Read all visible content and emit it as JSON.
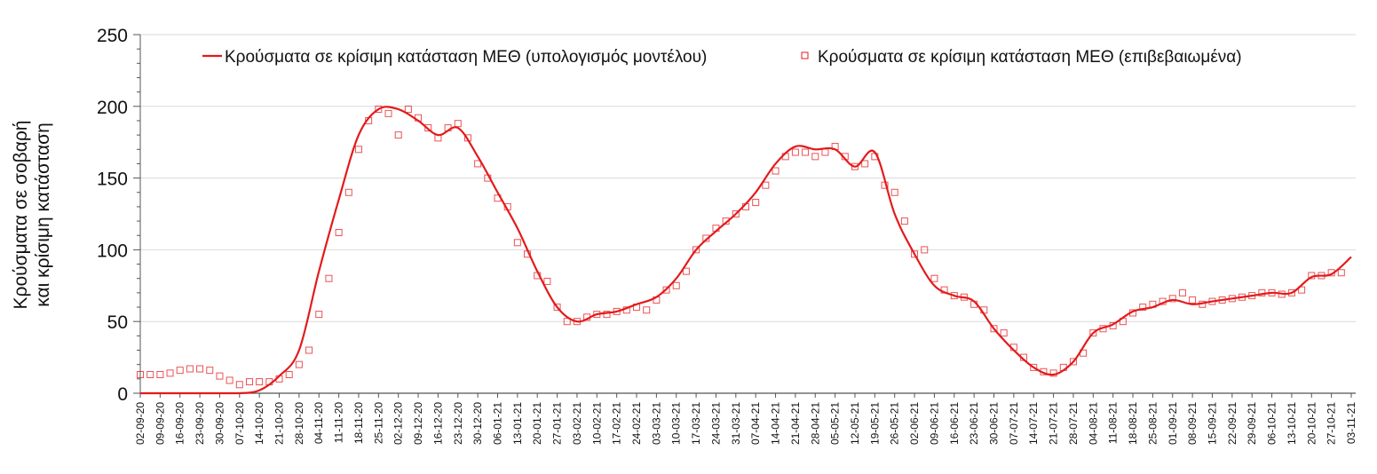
{
  "chart_data": {
    "type": "line",
    "title": "",
    "ylabel_lines": [
      "Κρούσματα σε σοβαρή",
      "και κρίσιμη κατάσταση"
    ],
    "xlabel": "",
    "ylim": [
      0,
      250
    ],
    "yticks": [
      0,
      50,
      100,
      150,
      200,
      250
    ],
    "ytick_labels": [
      "0",
      "50",
      "100",
      "150",
      "200",
      "250"
    ],
    "y_minor_step": 10,
    "grid": true,
    "legend_placement": "top",
    "colors": {
      "model": "#e31a1c",
      "confirmed": "#e31a1c",
      "grid": "#d9d9d9",
      "axis": "#555555"
    },
    "x_tick_labels": [
      "02-09-20",
      "09-09-20",
      "16-09-20",
      "23-09-20",
      "30-09-20",
      "07-10-20",
      "14-10-20",
      "21-10-20",
      "28-10-20",
      "04-11-20",
      "11-11-20",
      "18-11-20",
      "25-11-20",
      "02-12-20",
      "09-12-20",
      "16-12-20",
      "23-12-20",
      "30-12-20",
      "06-01-21",
      "13-01-21",
      "20-01-21",
      "27-01-21",
      "03-02-21",
      "10-02-21",
      "17-02-21",
      "24-02-21",
      "03-03-21",
      "10-03-21",
      "17-03-21",
      "24-03-21",
      "31-03-21",
      "07-04-21",
      "14-04-21",
      "21-04-21",
      "28-04-21",
      "05-05-21",
      "12-05-21",
      "19-05-21",
      "26-05-21",
      "02-06-21",
      "09-06-21",
      "16-06-21",
      "23-06-21",
      "30-06-21",
      "07-07-21",
      "14-07-21",
      "21-07-21",
      "28-07-21",
      "04-08-21",
      "11-08-21",
      "18-08-21",
      "25-08-21",
      "01-09-21",
      "08-09-21",
      "15-09-21",
      "22-09-21",
      "29-09-21",
      "06-10-21",
      "13-10-21",
      "20-10-21",
      "27-10-21",
      "03-11-21"
    ],
    "series": [
      {
        "name": "Κρούσματα σε κρίσιμη κατάσταση ΜΕΘ (υπολογισμός μοντέλου)",
        "style": "line",
        "x_unit": "week index",
        "values": [
          0,
          0,
          0,
          0,
          0,
          0,
          2,
          12,
          30,
          85,
          135,
          180,
          198,
          198,
          190,
          180,
          185,
          165,
          140,
          115,
          85,
          60,
          50,
          55,
          57,
          62,
          67,
          80,
          100,
          113,
          125,
          140,
          160,
          172,
          170,
          170,
          158,
          168,
          125,
          97,
          75,
          68,
          64,
          45,
          30,
          18,
          13,
          22,
          42,
          48,
          57,
          60,
          65,
          62,
          64,
          66,
          68,
          70,
          70,
          81,
          83,
          95
        ]
      },
      {
        "name": "Κρούσματα σε κρίσιμη κατάσταση ΜΕΘ (επιβεβαιωμένα)",
        "style": "square-markers",
        "x_unit": "half-week index",
        "values": [
          13,
          13,
          13,
          14,
          16,
          17,
          17,
          16,
          12,
          9,
          6,
          8,
          8,
          8,
          10,
          13,
          20,
          30,
          55,
          80,
          112,
          140,
          170,
          190,
          198,
          195,
          180,
          198,
          192,
          185,
          178,
          185,
          188,
          178,
          160,
          150,
          136,
          130,
          105,
          97,
          82,
          78,
          60,
          50,
          50,
          53,
          55,
          55,
          57,
          58,
          60,
          58,
          65,
          72,
          75,
          85,
          100,
          108,
          115,
          120,
          125,
          130,
          133,
          145,
          155,
          165,
          168,
          168,
          165,
          168,
          172,
          165,
          158,
          160,
          165,
          145,
          140,
          120,
          97,
          100,
          80,
          72,
          68,
          67,
          62,
          58,
          45,
          42,
          32,
          25,
          18,
          15,
          14,
          18,
          22,
          28,
          42,
          45,
          47,
          50,
          56,
          60,
          62,
          64,
          66,
          70,
          65,
          62,
          64,
          65,
          66,
          67,
          68,
          70,
          70,
          69,
          70,
          72,
          82,
          82,
          84,
          84
        ]
      }
    ]
  }
}
